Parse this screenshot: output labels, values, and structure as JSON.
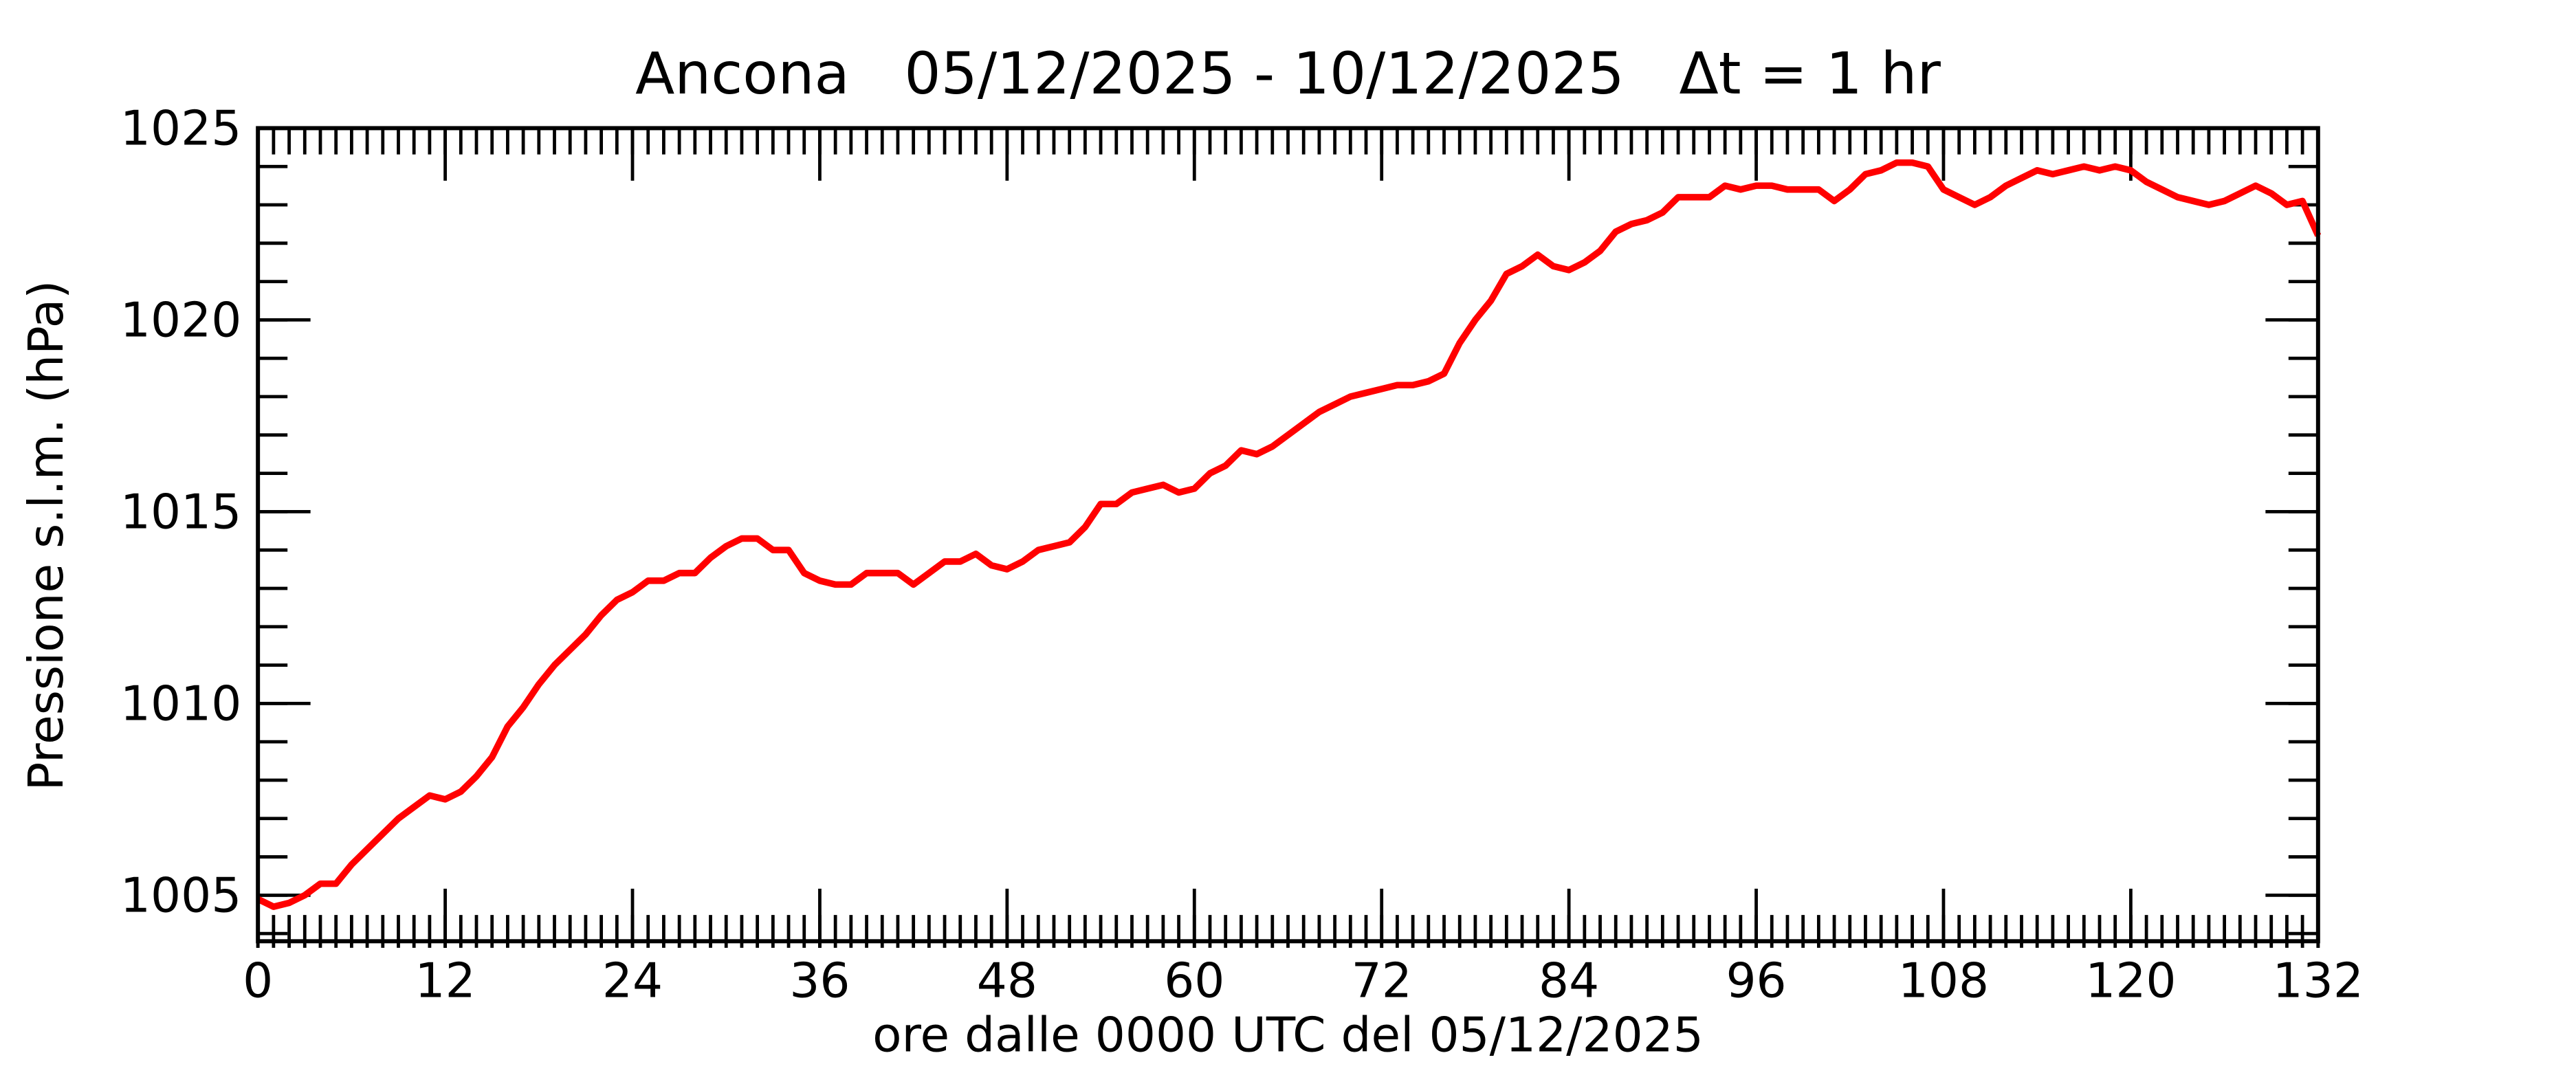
{
  "chart_data": {
    "type": "line",
    "title": "Ancona   05/12/2025 - 10/12/2025   Δt = 1 hr",
    "x_label": "ore dalle 0000 UTC del 05/12/2025",
    "y_label": "Pressione s.l.m. (hPa)",
    "xlim": [
      0,
      132
    ],
    "xticks": [
      0,
      12,
      24,
      36,
      48,
      60,
      72,
      84,
      96,
      108,
      120,
      132
    ],
    "ylim": [
      1003.8,
      1025
    ],
    "yticks": [
      1005,
      1010,
      1015,
      1020,
      1025
    ],
    "x": [
      0,
      1,
      2,
      3,
      4,
      5,
      6,
      7,
      8,
      9,
      10,
      11,
      12,
      13,
      14,
      15,
      16,
      17,
      18,
      19,
      20,
      21,
      22,
      23,
      24,
      25,
      26,
      27,
      28,
      29,
      30,
      31,
      32,
      33,
      34,
      35,
      36,
      37,
      38,
      39,
      40,
      41,
      42,
      43,
      44,
      45,
      46,
      47,
      48,
      49,
      50,
      51,
      52,
      53,
      54,
      55,
      56,
      57,
      58,
      59,
      60,
      61,
      62,
      63,
      64,
      65,
      66,
      67,
      68,
      69,
      70,
      71,
      72,
      73,
      74,
      75,
      76,
      77,
      78,
      79,
      80,
      81,
      82,
      83,
      84,
      85,
      86,
      87,
      88,
      89,
      90,
      91,
      92,
      93,
      94,
      95,
      96,
      97,
      98,
      99,
      100,
      101,
      102,
      103,
      104,
      105,
      106,
      107,
      108,
      109,
      110,
      111,
      112,
      113,
      114,
      115,
      116,
      117,
      118,
      119,
      120,
      121,
      122,
      123,
      124,
      125,
      126,
      127,
      128,
      129,
      130,
      131,
      132
    ],
    "series": [
      {
        "name": "Pressione",
        "color": "#ff0000",
        "values": [
          1004.9,
          1004.7,
          1004.8,
          1005.0,
          1005.3,
          1005.3,
          1005.8,
          1006.2,
          1006.6,
          1007.0,
          1007.3,
          1007.6,
          1007.5,
          1007.7,
          1008.1,
          1008.6,
          1009.4,
          1009.9,
          1010.5,
          1011.0,
          1011.4,
          1011.8,
          1012.3,
          1012.7,
          1012.9,
          1013.2,
          1013.2,
          1013.4,
          1013.4,
          1013.8,
          1014.1,
          1014.3,
          1014.3,
          1014.0,
          1014.0,
          1013.4,
          1013.2,
          1013.1,
          1013.1,
          1013.4,
          1013.4,
          1013.4,
          1013.1,
          1013.4,
          1013.7,
          1013.7,
          1013.9,
          1013.6,
          1013.5,
          1013.7,
          1014.0,
          1014.1,
          1014.2,
          1014.6,
          1015.2,
          1015.2,
          1015.5,
          1015.6,
          1015.7,
          1015.5,
          1015.6,
          1016.0,
          1016.2,
          1016.6,
          1016.5,
          1016.7,
          1017.0,
          1017.3,
          1017.6,
          1017.8,
          1018.0,
          1018.1,
          1018.2,
          1018.3,
          1018.3,
          1018.4,
          1018.6,
          1019.4,
          1020.0,
          1020.5,
          1021.2,
          1021.4,
          1021.7,
          1021.4,
          1021.3,
          1021.5,
          1021.8,
          1022.3,
          1022.5,
          1022.6,
          1022.8,
          1023.2,
          1023.2,
          1023.2,
          1023.5,
          1023.4,
          1023.5,
          1023.5,
          1023.4,
          1023.4,
          1023.4,
          1023.1,
          1023.4,
          1023.8,
          1023.9,
          1024.1,
          1024.1,
          1024.0,
          1023.4,
          1023.2,
          1023.0,
          1023.2,
          1023.5,
          1023.7,
          1023.9,
          1023.8,
          1023.9,
          1024.0,
          1023.9,
          1024.0,
          1023.9,
          1023.6,
          1023.4,
          1023.2,
          1023.1,
          1023.0,
          1023.1,
          1023.3,
          1023.5,
          1023.3,
          1023.0,
          1023.1,
          1022.2
        ]
      }
    ]
  }
}
